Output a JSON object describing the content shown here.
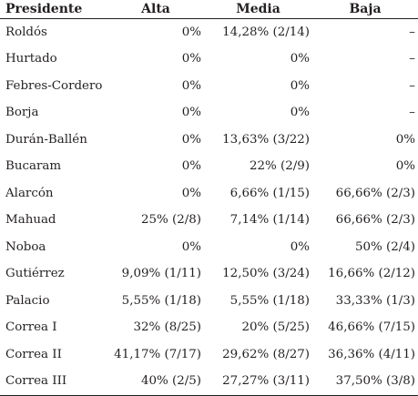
{
  "table": {
    "headers": [
      "Presidente",
      "Alta",
      "Media",
      "Baja"
    ],
    "rows": [
      [
        "Roldós",
        "0%",
        "14,28% (2/14)",
        "–"
      ],
      [
        "Hurtado",
        "0%",
        "0%",
        "–"
      ],
      [
        "Febres-Cordero",
        "0%",
        "0%",
        "–"
      ],
      [
        "Borja",
        "0%",
        "0%",
        "–"
      ],
      [
        "Durán-Ballén",
        "0%",
        "13,63% (3/22)",
        "0%"
      ],
      [
        "Bucaram",
        "0%",
        "22% (2/9)",
        "0%"
      ],
      [
        "Alarcón",
        "0%",
        "6,66% (1/15)",
        "66,66% (2/3)"
      ],
      [
        "Mahuad",
        "25% (2/8)",
        "7,14% (1/14)",
        "66,66% (2/3)"
      ],
      [
        "Noboa",
        "0%",
        "0%",
        "50% (2/4)"
      ],
      [
        "Gutiérrez",
        "9,09% (1/11)",
        "12,50% (3/24)",
        "16,66% (2/12)"
      ],
      [
        "Palacio",
        "5,55% (1/18)",
        "5,55% (1/18)",
        "33,33% (1/3)"
      ],
      [
        "Correa I",
        "32% (8/25)",
        "20% (5/25)",
        "46,66% (7/15)"
      ],
      [
        "Correa II",
        "41,17% (7/17)",
        "29,62% (8/27)",
        "36,36% (4/11)"
      ],
      [
        "Correa III",
        "40% (2/5)",
        "27,27% (3/11)",
        "37,50% (3/8)"
      ]
    ]
  }
}
